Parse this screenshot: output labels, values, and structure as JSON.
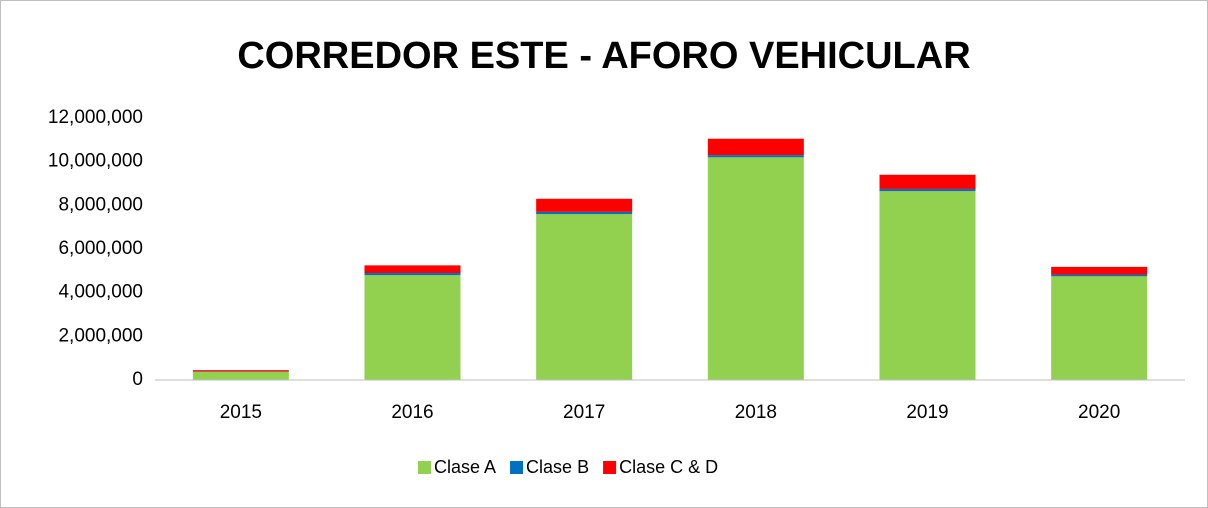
{
  "chart_data": {
    "type": "stacked_bar",
    "title": "CORREDOR ESTE - AFORO VEHICULAR",
    "categories": [
      "2015",
      "2016",
      "2017",
      "2018",
      "2019",
      "2020"
    ],
    "series": [
      {
        "name": "Clase A",
        "color": "#92d050",
        "values": [
          380000,
          4800000,
          7600000,
          10200000,
          8650000,
          4750000
        ]
      },
      {
        "name": "Clase B",
        "color": "#0070c0",
        "values": [
          10000,
          100000,
          100000,
          100000,
          100000,
          80000
        ]
      },
      {
        "name": "Clase C & D",
        "color": "#ff0000",
        "values": [
          60000,
          350000,
          600000,
          750000,
          650000,
          350000
        ]
      }
    ],
    "ylim": [
      0,
      12000000
    ],
    "yticks": [
      0,
      {
        "value": 2000000,
        "label": "2,000,000"
      },
      {
        "value": 4000000,
        "label": "4,000,000"
      },
      {
        "value": 6000000,
        "label": "6,000,000"
      },
      {
        "value": 8000000,
        "label": "8,000,000"
      },
      {
        "value": 10000000,
        "label": "10,000,000"
      },
      {
        "value": 12000000,
        "label": "12,000,000"
      }
    ],
    "grid": false,
    "legend": "bottom"
  }
}
